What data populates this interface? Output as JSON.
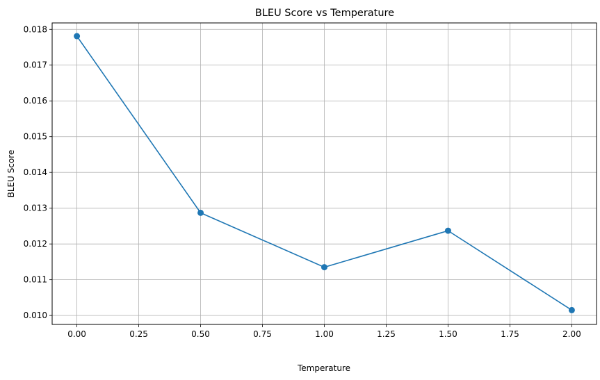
{
  "chart_data": {
    "type": "line",
    "title": "BLEU Score vs Temperature",
    "xlabel": "Temperature",
    "ylabel": "BLEU Score",
    "xlim": [
      -0.1,
      2.1
    ],
    "ylim": [
      0.00975,
      0.01818
    ],
    "grid": true,
    "x_ticks": [
      "0.00",
      "0.25",
      "0.50",
      "0.75",
      "1.00",
      "1.25",
      "1.50",
      "1.75",
      "2.00"
    ],
    "x_tick_values": [
      0,
      0.25,
      0.5,
      0.75,
      1.0,
      1.25,
      1.5,
      1.75,
      2.0
    ],
    "y_ticks": [
      "0.010",
      "0.011",
      "0.012",
      "0.013",
      "0.014",
      "0.015",
      "0.016",
      "0.017",
      "0.018"
    ],
    "y_tick_values": [
      0.01,
      0.011,
      0.012,
      0.013,
      0.014,
      0.015,
      0.016,
      0.017,
      0.018
    ],
    "series": [
      {
        "color": "#1f77b4",
        "marker": "circle",
        "x": [
          0.0,
          0.5,
          1.0,
          1.5,
          2.0
        ],
        "y": [
          0.01781,
          0.01287,
          0.01135,
          0.01237,
          0.01015
        ]
      }
    ]
  }
}
